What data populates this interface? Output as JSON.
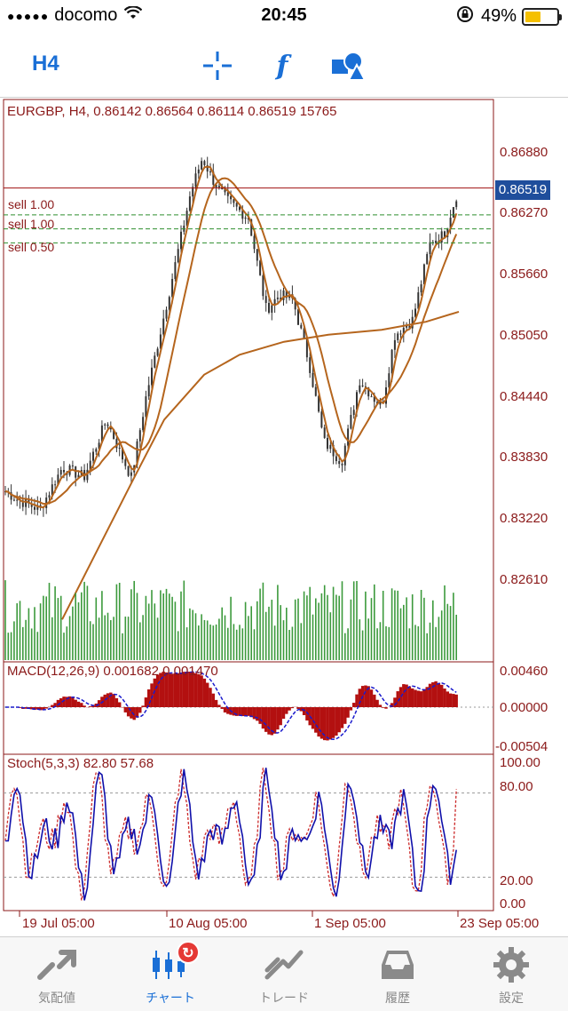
{
  "status_bar": {
    "signal": "●●●●●",
    "carrier": "docomo",
    "wifi_icon": "wifi-icon",
    "time": "20:45",
    "rotation_lock_icon": "rotation-lock-icon",
    "battery_pct": "49%",
    "battery_level": 0.49
  },
  "toolbar": {
    "timeframe": "H4",
    "crosshair_icon": "crosshair-icon",
    "indicators_icon": "f",
    "objects_icon": "objects-icon"
  },
  "chart": {
    "info_line": "EURGBP, H4, 0.86142 0.86564 0.86114 0.86519 15765",
    "current_price": "0.86519",
    "price_labels": [
      "0.86880",
      "0.86270",
      "0.85660",
      "0.85050",
      "0.84440",
      "0.83830",
      "0.83220",
      "0.82610"
    ],
    "orders": [
      {
        "label": "sell 1.00",
        "price": 0.8625
      },
      {
        "label": "sell 1.00",
        "price": 0.8611
      },
      {
        "label": "sell 0.50",
        "price": 0.8597
      }
    ],
    "macd": {
      "info": "MACD(12,26,9) 0.001682 0.001470",
      "labels": [
        "0.00460",
        "0.00000",
        "-0.00504"
      ]
    },
    "stoch": {
      "info": "Stoch(5,3,3) 82.80 57.68",
      "labels": [
        "100.00",
        "80.00",
        "20.00",
        "0.00"
      ]
    },
    "dates": [
      "19 Jul 05:00",
      "10 Aug 05:00",
      "1 Sep 05:00",
      "23 Sep 05:00"
    ],
    "colors": {
      "frame": "#8b1a1a",
      "candles": "#333333",
      "ma": "#b5651d",
      "volume": "#3c9a3c",
      "macd": "#b31010",
      "signal": "#1a1acc",
      "stoch_main": "#1010aa",
      "stoch_signal": "#cc2a2a",
      "order_line": "#2f8f2f",
      "price_line": "#a01010"
    }
  },
  "tabs": [
    {
      "label": "気配値",
      "icon": "quotes-icon",
      "active": false
    },
    {
      "label": "チャート",
      "icon": "chart-icon",
      "active": true,
      "badge": "↻"
    },
    {
      "label": "トレード",
      "icon": "trade-icon",
      "active": false
    },
    {
      "label": "履歴",
      "icon": "history-icon",
      "active": false
    },
    {
      "label": "設定",
      "icon": "settings-icon",
      "active": false
    }
  ]
}
